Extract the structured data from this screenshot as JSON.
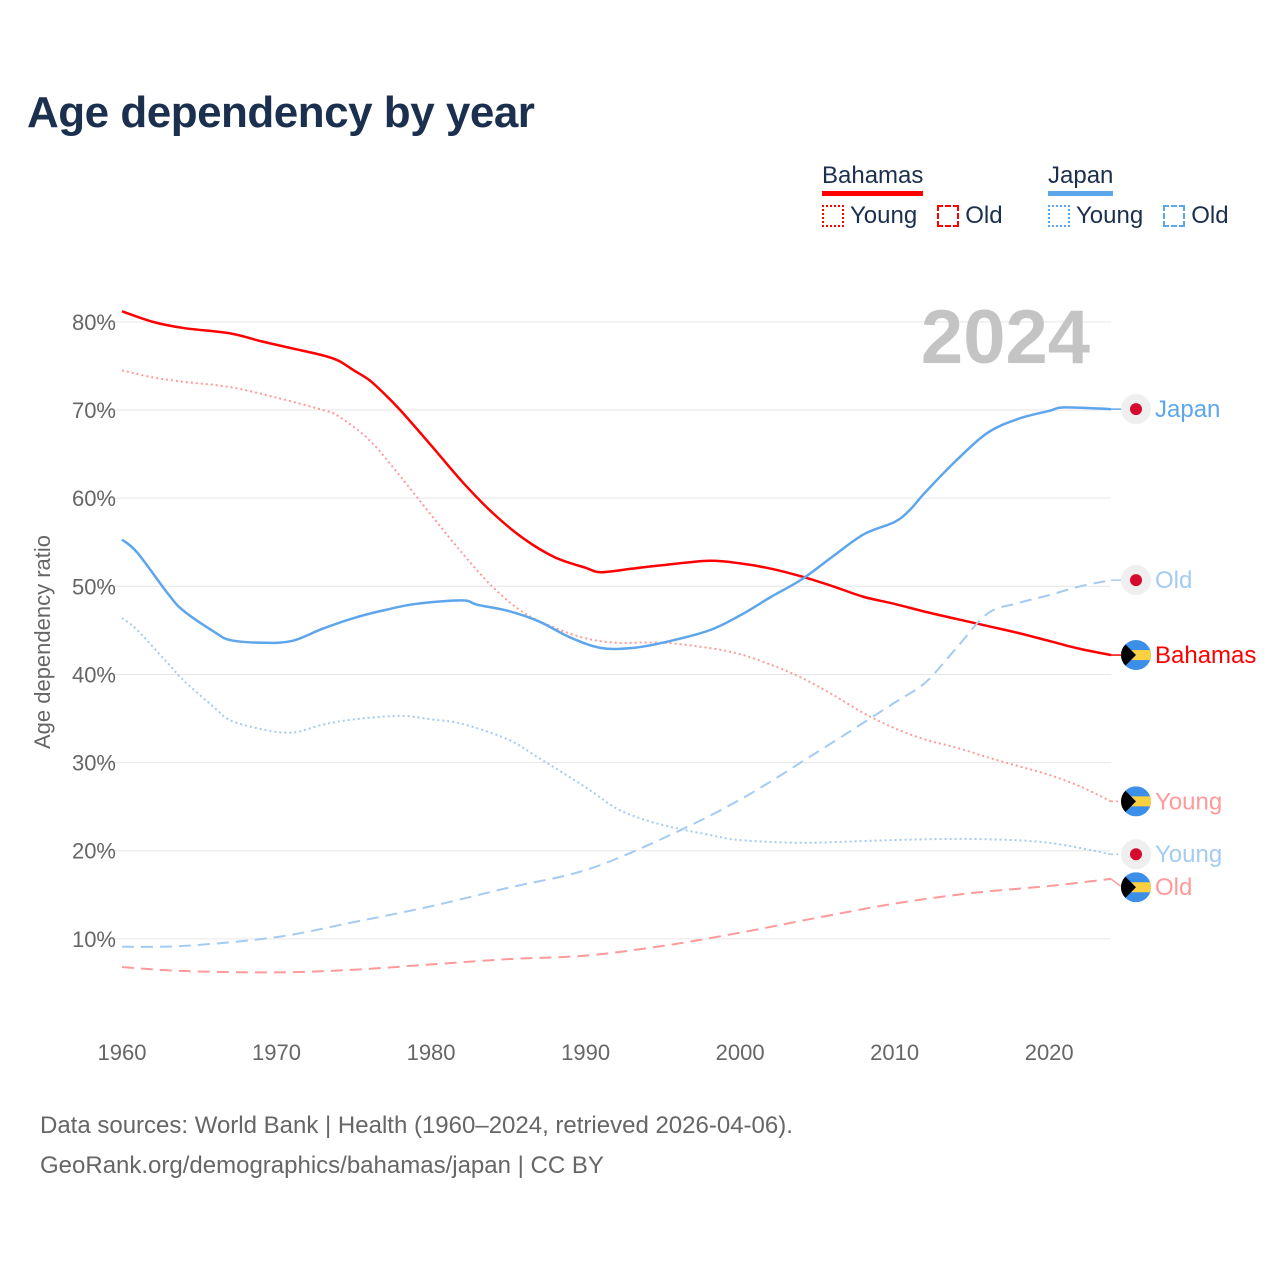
{
  "title": "Age dependency by year",
  "legend": {
    "groups": [
      {
        "name": "Bahamas",
        "color": "#ff0000",
        "items": [
          "Young",
          "Old"
        ]
      },
      {
        "name": "Japan",
        "color": "#5ea6ec",
        "items": [
          "Young",
          "Old"
        ]
      }
    ]
  },
  "year_watermark": "2024",
  "source": {
    "line1": "Data sources: World Bank | Health (1960–2024, retrieved 2026-04-06).",
    "line2": "GeoRank.org/demographics/bahamas/japan | CC BY"
  },
  "chart_data": {
    "type": "line",
    "title": "Age dependency by year",
    "xlabel": "",
    "ylabel": "Age dependency ratio",
    "xlim": [
      1960,
      2024
    ],
    "ylim": [
      0,
      82
    ],
    "x_ticks": [
      1960,
      1970,
      1980,
      1990,
      2000,
      2010,
      2020
    ],
    "y_ticks": [
      10,
      20,
      30,
      40,
      50,
      60,
      70,
      80
    ],
    "y_tick_labels": [
      "10%",
      "20%",
      "30%",
      "40%",
      "50%",
      "60%",
      "70%",
      "80%"
    ],
    "grid": true,
    "series": [
      {
        "name": "Bahamas",
        "end_label": "Bahamas",
        "country": "Bahamas",
        "style": "solid",
        "color": "#ff0000",
        "x": [
          1960,
          1962,
          1964,
          1967,
          1969,
          1971,
          1973,
          1974,
          1975,
          1976,
          1977,
          1978,
          1980,
          1982,
          1984,
          1986,
          1988,
          1990,
          1991,
          1993,
          1995,
          1998,
          2000,
          2002,
          2004,
          2006,
          2008,
          2010,
          2012,
          2014,
          2016,
          2018,
          2020,
          2022,
          2024
        ],
        "y": [
          81.2,
          80.0,
          79.3,
          78.7,
          77.8,
          77.0,
          76.2,
          75.6,
          74.5,
          73.4,
          71.8,
          70.0,
          66.0,
          61.9,
          58.3,
          55.4,
          53.3,
          52.1,
          51.6,
          52.0,
          52.4,
          52.9,
          52.6,
          52.0,
          51.1,
          50.0,
          48.8,
          48.0,
          47.1,
          46.3,
          45.5,
          44.7,
          43.8,
          42.9,
          42.2
        ]
      },
      {
        "name": "Bahamas Young",
        "end_label": "Young",
        "country": "Bahamas",
        "style": "dotted",
        "color": "#ff9a9a",
        "x": [
          1960,
          1962,
          1964,
          1967,
          1970,
          1973,
          1974,
          1976,
          1978,
          1980,
          1982,
          1984,
          1986,
          1988,
          1990,
          1992,
          1995,
          1998,
          2000,
          2002,
          2004,
          2006,
          2008,
          2010,
          2012,
          2014,
          2016,
          2018,
          2020,
          2022,
          2024
        ],
        "y": [
          74.5,
          73.7,
          73.2,
          72.6,
          71.4,
          70.0,
          69.3,
          66.6,
          62.5,
          58.1,
          53.8,
          49.9,
          47.0,
          45.3,
          44.1,
          43.6,
          43.6,
          43.0,
          42.3,
          41.1,
          39.6,
          37.7,
          35.6,
          33.9,
          32.6,
          31.7,
          30.6,
          29.6,
          28.6,
          27.3,
          25.6
        ]
      },
      {
        "name": "Bahamas Old",
        "end_label": "Old",
        "country": "Bahamas",
        "style": "dashed",
        "color": "#ff9a9a",
        "x": [
          1960,
          1964,
          1970,
          1975,
          1980,
          1985,
          1990,
          1995,
          2000,
          2005,
          2010,
          2015,
          2020,
          2024
        ],
        "y": [
          6.8,
          6.35,
          6.2,
          6.5,
          7.1,
          7.7,
          8.1,
          9.2,
          10.7,
          12.4,
          14.0,
          15.2,
          16.0,
          16.8
        ]
      },
      {
        "name": "Japan",
        "end_label": "Japan",
        "country": "Japan",
        "style": "solid",
        "color": "#5ea6ec",
        "x": [
          1960,
          1961,
          1963,
          1964,
          1966,
          1967,
          1969,
          1971,
          1973,
          1975,
          1977,
          1979,
          1982,
          1983,
          1985,
          1987,
          1989,
          1991,
          1993,
          1995,
          1998,
          2000,
          2002,
          2004,
          2006,
          2008,
          2010,
          2011,
          2012,
          2014,
          2016,
          2018,
          2020,
          2021,
          2024
        ],
        "y": [
          55.3,
          53.8,
          49.1,
          47.2,
          44.8,
          43.9,
          43.6,
          43.8,
          45.2,
          46.4,
          47.3,
          48.0,
          48.4,
          47.9,
          47.2,
          46.0,
          44.2,
          43.0,
          43.0,
          43.6,
          45.0,
          46.7,
          48.8,
          50.8,
          53.4,
          55.9,
          57.3,
          58.7,
          60.7,
          64.3,
          67.4,
          69.0,
          69.9,
          70.3,
          70.1
        ]
      },
      {
        "name": "Japan Young",
        "end_label": "Young",
        "country": "Japan",
        "style": "dotted",
        "color": "#a3cbf3",
        "x": [
          1960,
          1961,
          1963,
          1964,
          1966,
          1967,
          1969,
          1971,
          1973,
          1975,
          1978,
          1980,
          1982,
          1985,
          1987,
          1990,
          1992,
          1994,
          1996,
          1998,
          2000,
          2004,
          2008,
          2012,
          2016,
          2020,
          2024
        ],
        "y": [
          46.4,
          45.0,
          41.2,
          39.3,
          36.2,
          34.8,
          33.8,
          33.4,
          34.3,
          34.9,
          35.3,
          34.9,
          34.4,
          32.6,
          30.5,
          27.2,
          24.8,
          23.4,
          22.5,
          21.8,
          21.2,
          20.9,
          21.1,
          21.3,
          21.3,
          20.9,
          19.6
        ]
      },
      {
        "name": "Japan Old",
        "end_label": "Old",
        "country": "Japan",
        "style": "dashed",
        "color": "#a3cbf3",
        "x": [
          1960,
          1964,
          1970,
          1975,
          1980,
          1985,
          1990,
          1995,
          2000,
          2005,
          2010,
          2012,
          2014,
          2016,
          2018,
          2020,
          2022,
          2024
        ],
        "y": [
          9.1,
          9.2,
          10.2,
          11.9,
          13.7,
          15.8,
          17.8,
          21.4,
          25.8,
          31.2,
          36.8,
          39.1,
          43.0,
          46.9,
          48.1,
          49.0,
          50.0,
          50.7
        ]
      }
    ]
  }
}
